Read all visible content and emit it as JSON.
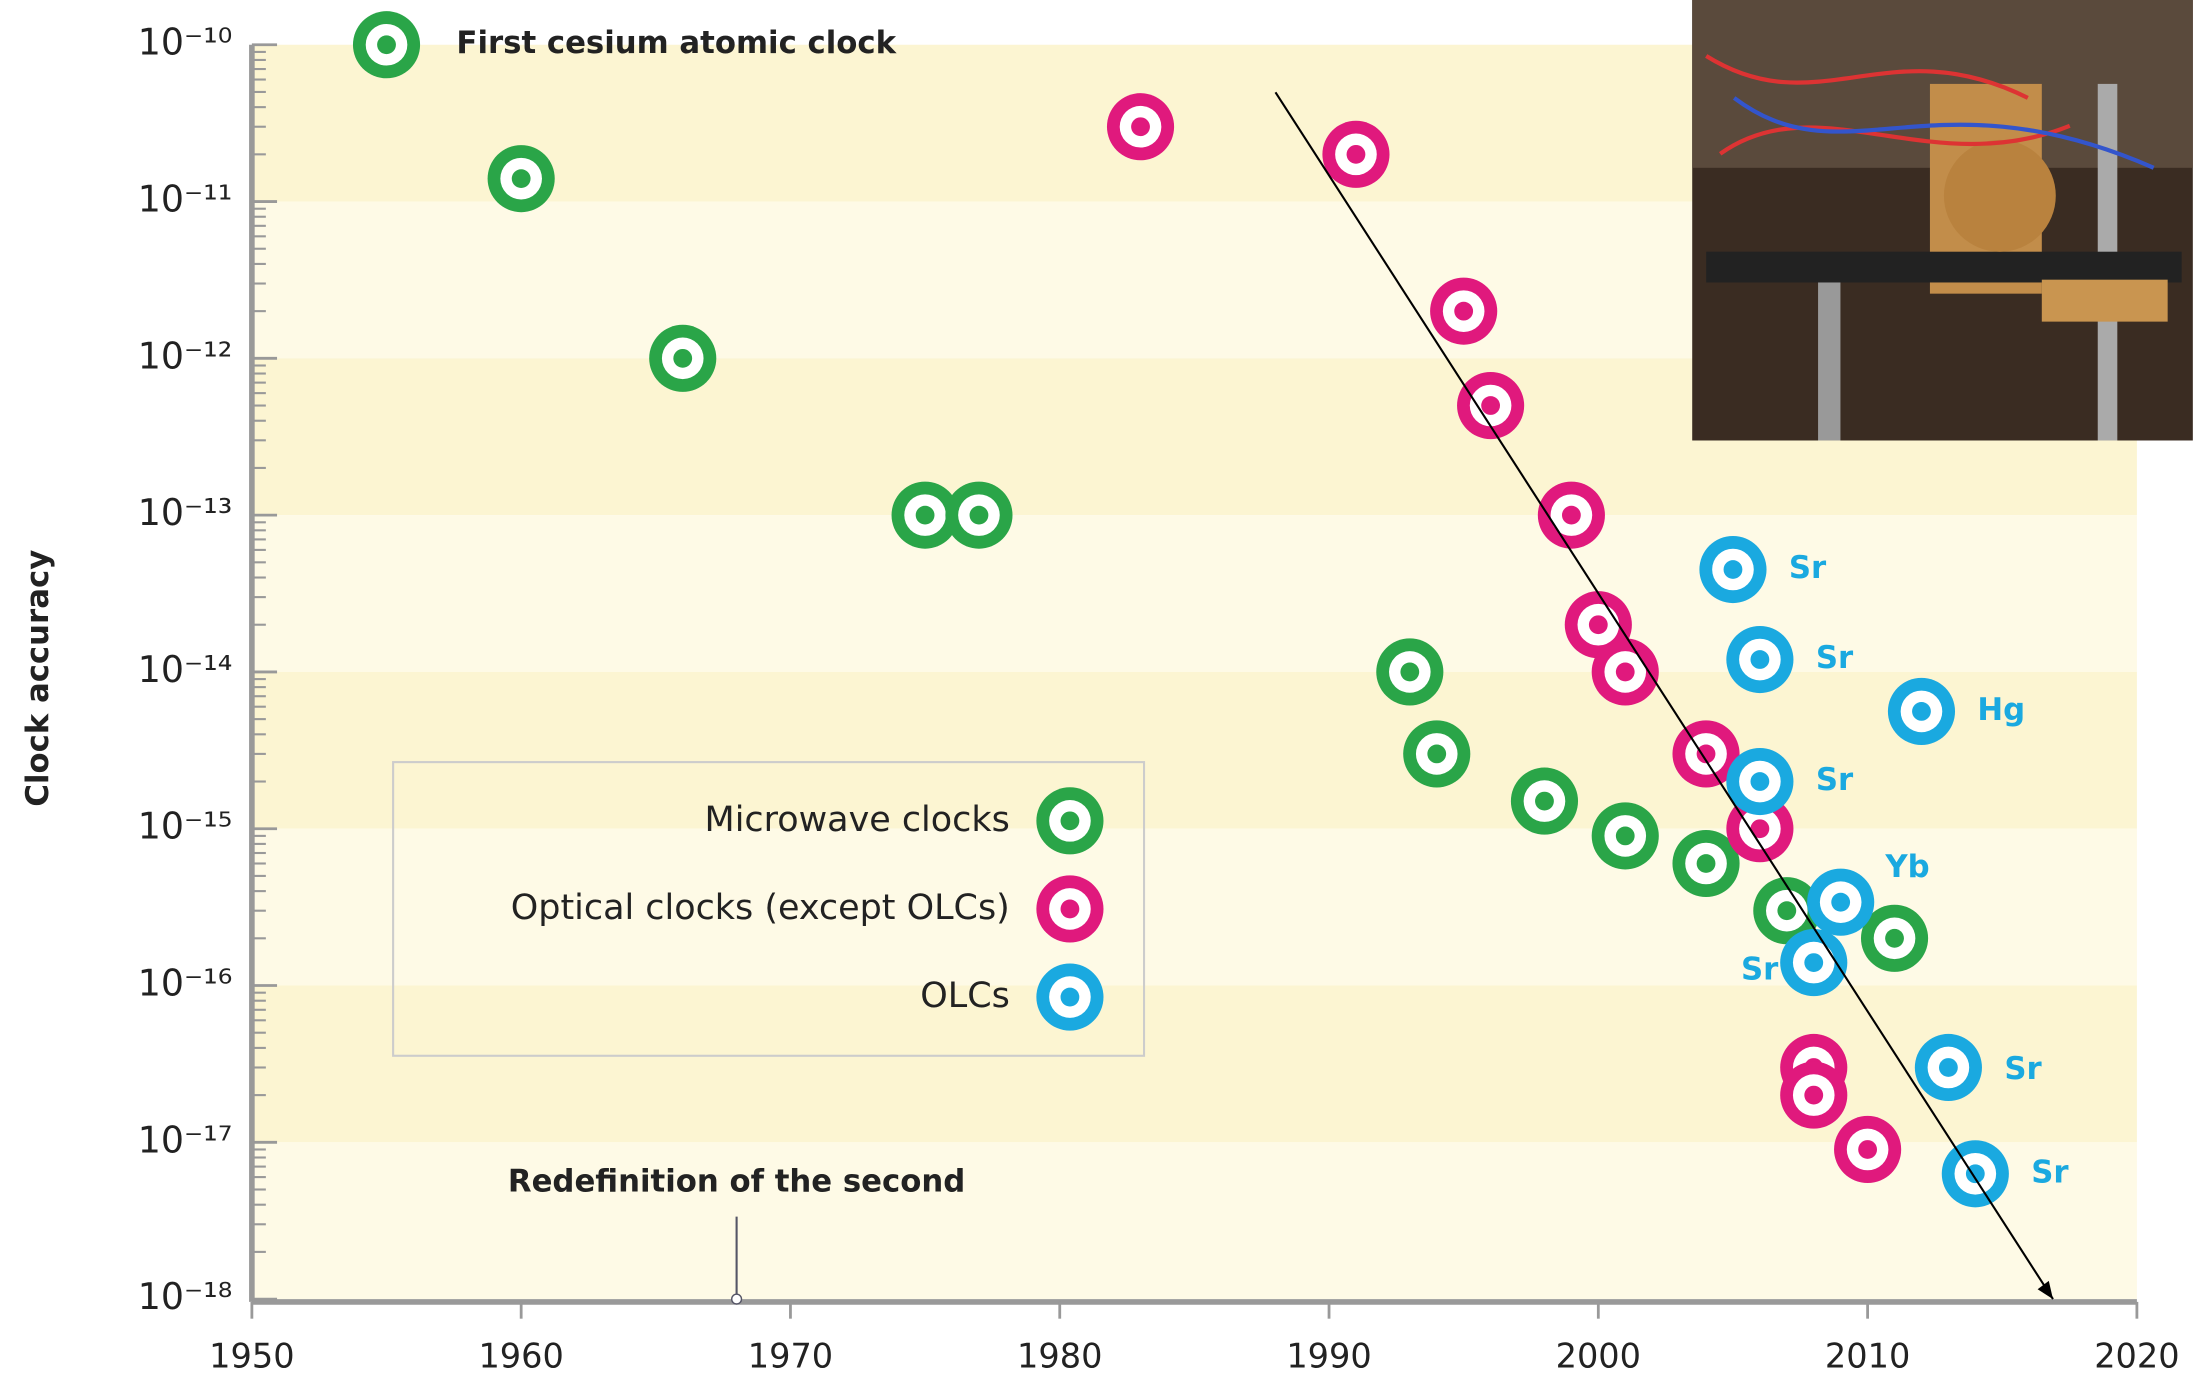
{
  "chart_data": {
    "type": "scatter",
    "y_axis_label": "Clock accuracy",
    "log_y": true,
    "xlim": [
      1950,
      2020
    ],
    "xticks": [
      1950,
      1960,
      1970,
      1980,
      1990,
      2000,
      2010,
      2020
    ],
    "ylim": [
      1e-18,
      1e-10
    ],
    "yticks": [
      {
        "value": 1e-10,
        "label": "10⁻¹⁰"
      },
      {
        "value": 1e-11,
        "label": "10⁻¹¹"
      },
      {
        "value": 1e-12,
        "label": "10⁻¹²"
      },
      {
        "value": 1e-13,
        "label": "10⁻¹³"
      },
      {
        "value": 1e-14,
        "label": "10⁻¹⁴"
      },
      {
        "value": 1e-15,
        "label": "10⁻¹⁵"
      },
      {
        "value": 1e-16,
        "label": "10⁻¹⁶"
      },
      {
        "value": 1e-17,
        "label": "10⁻¹⁷"
      },
      {
        "value": 1e-18,
        "label": "10⁻¹⁸"
      }
    ],
    "series": [
      {
        "name": "Microwave clocks",
        "color": "#2aa548",
        "x": [
          1955,
          1960,
          1966,
          1975,
          1977,
          1993,
          1994,
          1998,
          2001,
          2004,
          2007,
          2011
        ],
        "values": [
          1e-10,
          1.4e-11,
          1e-12,
          1e-13,
          1e-13,
          1e-14,
          3e-15,
          1.5e-15,
          9e-16,
          6e-16,
          3e-16,
          2e-16
        ]
      },
      {
        "name": "Optical clocks (except OLCs)",
        "color": "#e0197d",
        "x": [
          1983,
          1991,
          1995,
          1996,
          1999,
          2000,
          2001,
          2004,
          2006,
          2008,
          2008,
          2010
        ],
        "values": [
          3e-11,
          2e-11,
          2e-12,
          5e-13,
          1e-13,
          2e-14,
          1e-14,
          3e-15,
          1e-15,
          3e-17,
          2e-17,
          9e-18
        ]
      },
      {
        "name": "OLCs",
        "color": "#1aa9e0",
        "x": [
          2005,
          2006,
          2012,
          2006,
          2009,
          2008,
          2013,
          2014
        ],
        "values": [
          4.5e-14,
          1.2e-14,
          5.6e-15,
          2e-15,
          3.4e-16,
          1.4e-16,
          3e-17,
          6.3e-18
        ],
        "point_labels": [
          "Sr",
          "Sr",
          "Hg",
          "Sr",
          "Yb",
          "Sr",
          "Sr",
          "Sr"
        ]
      }
    ],
    "annotations": [
      {
        "text": "First cesium atomic clock"
      },
      {
        "text": "Redefinition of the second",
        "x": 1968
      }
    ]
  }
}
